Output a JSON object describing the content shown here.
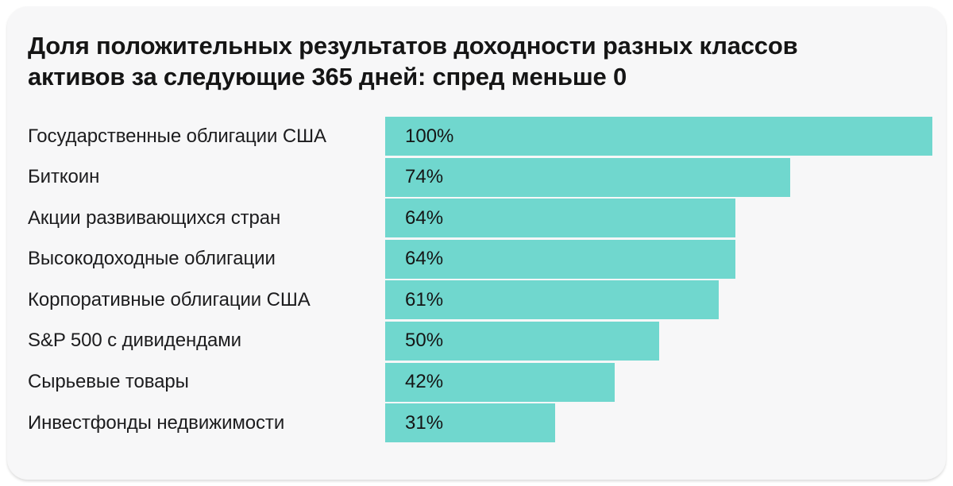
{
  "page": {
    "background": "#ffffff",
    "card_background": "#f7f7f8"
  },
  "header": {
    "title_line1": "Доля положительных результатов доходности разных классов",
    "title_line2": "активов за следующие 365 дней: спред меньше 0"
  },
  "chart_data": {
    "type": "bar",
    "orientation": "horizontal",
    "title": "Доля положительных результатов доходности разных классов активов за следующие 365 дней: спред меньше 0",
    "categories": [
      "Государственные облигации США",
      "Биткоин",
      "Акции развивающихся стран",
      "Высокодоходные облигации",
      "Корпоративные облигации США",
      "S&P 500 с дивидендами",
      "Сырьевые товары",
      "Инвестфонды недвижимости"
    ],
    "values": [
      100,
      74,
      64,
      64,
      61,
      50,
      42,
      31
    ],
    "value_labels": [
      "100%",
      "74%",
      "64%",
      "64%",
      "61%",
      "50%",
      "42%",
      "31%"
    ],
    "xlim": [
      0,
      100
    ],
    "bar_color": "#70d7ce",
    "text_color": "#1c1c1e",
    "grid": false,
    "legend": false,
    "value_label_position": "inside-left"
  }
}
